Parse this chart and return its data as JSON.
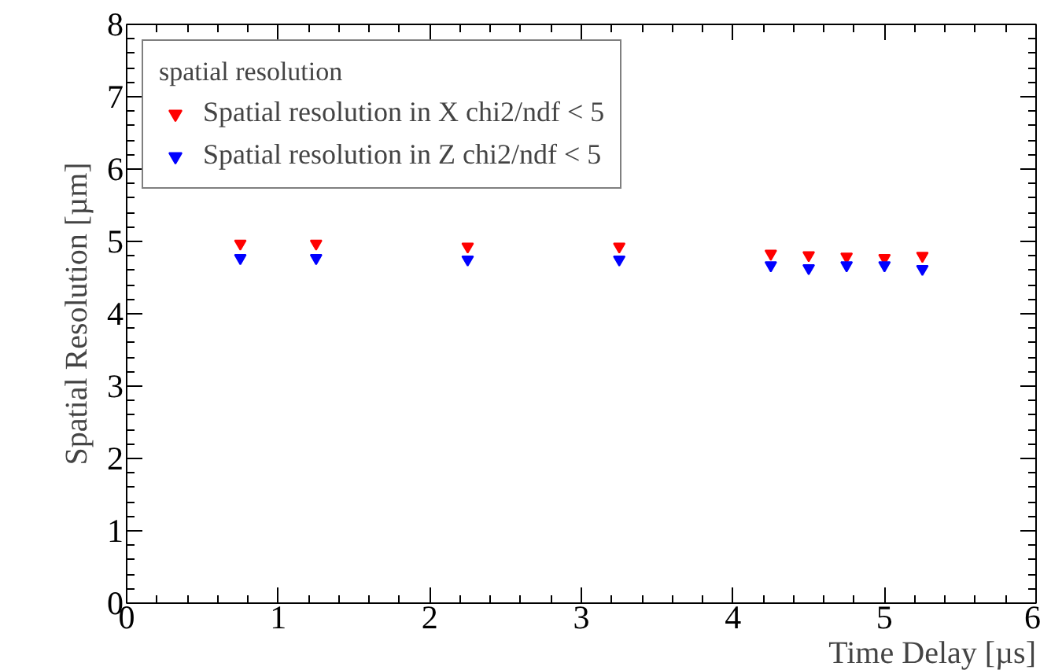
{
  "chart_data": {
    "type": "scatter",
    "xlabel": "Time Delay [µs]",
    "ylabel": "Spatial Resolution [µm]",
    "legend_title": "spatial resolution",
    "x": [
      0.75,
      1.25,
      2.25,
      3.25,
      4.25,
      4.5,
      4.75,
      5.0,
      5.25
    ],
    "series": [
      {
        "name": "Spatial resolution in X chi2/ndf < 5",
        "color": "#ff0000",
        "values": [
          4.97,
          4.97,
          4.93,
          4.93,
          4.83,
          4.81,
          4.79,
          4.77,
          4.8
        ]
      },
      {
        "name": "Spatial resolution in Z chi2/ndf < 5",
        "color": "#0000ff",
        "values": [
          4.77,
          4.77,
          4.75,
          4.75,
          4.67,
          4.63,
          4.67,
          4.67,
          4.62
        ]
      }
    ],
    "xlim": [
      0,
      6
    ],
    "ylim": [
      0,
      8
    ],
    "xticks": [
      0,
      1,
      2,
      3,
      4,
      5,
      6
    ],
    "yticks": [
      0,
      1,
      2,
      3,
      4,
      5,
      6,
      7,
      8
    ],
    "marker": "triangle",
    "grid": false,
    "legend": "top left"
  }
}
